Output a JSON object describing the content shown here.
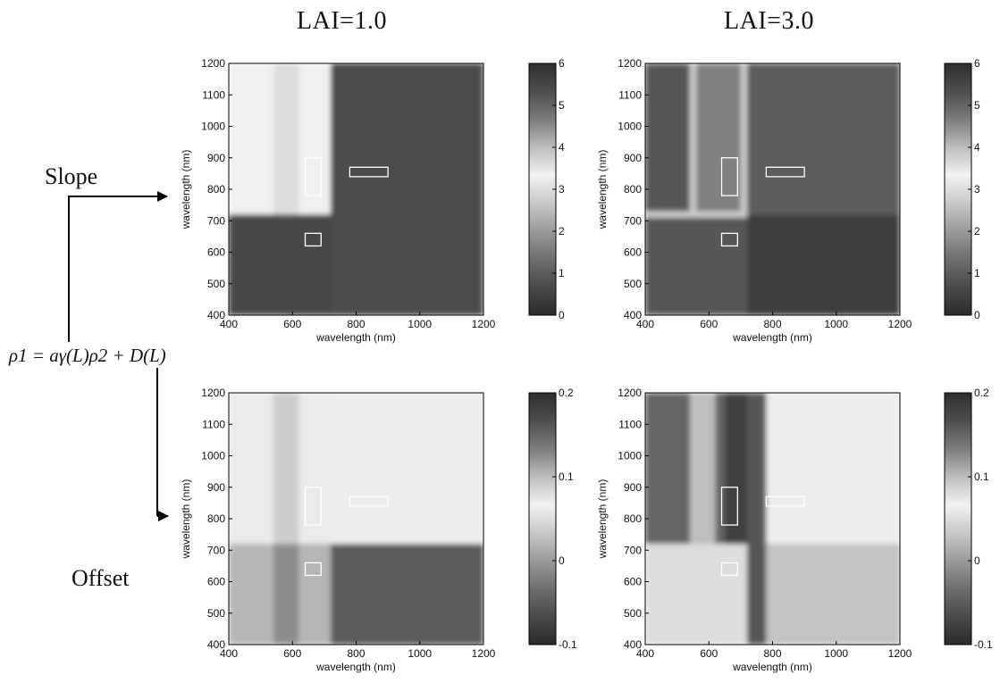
{
  "figure": {
    "column_titles": [
      "LAI=1.0",
      "LAI=3.0"
    ],
    "row_labels": [
      "Slope",
      "Offset"
    ],
    "equation": "ρ1 = aγ(L)ρ2 + D(L)"
  },
  "colors": {
    "colormap": [
      "#2b2b2b",
      "#4a4a4a",
      "#6e6e6e",
      "#9a9a9a",
      "#c8c8c8",
      "#f2f2f2",
      "#bdbdbd",
      "#7c7c7c",
      "#4e4e4e",
      "#2e2e2e"
    ],
    "box_outline": "#ffffff",
    "arrow": "#000000"
  },
  "chart_data": [
    {
      "type": "heatmap",
      "panel": "Slope, LAI=1.0",
      "xlabel": "wavelength (nm)",
      "ylabel": "wavelength (nm)",
      "xlim": [
        400,
        1200
      ],
      "ylim": [
        400,
        1200
      ],
      "xticks": [
        400,
        600,
        800,
        1000,
        1200
      ],
      "yticks": [
        400,
        500,
        600,
        700,
        800,
        900,
        1000,
        1100,
        1200
      ],
      "colorbar": {
        "min": 0,
        "max": 6,
        "ticks": [
          0,
          1,
          2,
          3,
          4,
          5,
          6
        ]
      },
      "regions": [
        {
          "x": [
            400,
            720
          ],
          "y": [
            720,
            1200
          ],
          "value": 3.3
        },
        {
          "x": [
            540,
            620
          ],
          "y": [
            720,
            1200
          ],
          "value": 3.6
        },
        {
          "x": [
            720,
            1200
          ],
          "y": [
            400,
            1200
          ],
          "value": 0.7
        },
        {
          "x": [
            400,
            720
          ],
          "y": [
            400,
            720
          ],
          "value": 0.6
        }
      ],
      "boxes": [
        {
          "x": [
            640,
            690
          ],
          "y": [
            780,
            900
          ]
        },
        {
          "x": [
            780,
            900
          ],
          "y": [
            840,
            870
          ]
        },
        {
          "x": [
            640,
            690
          ],
          "y": [
            620,
            660
          ]
        }
      ]
    },
    {
      "type": "heatmap",
      "panel": "Slope, LAI=3.0",
      "xlabel": "wavelength (nm)",
      "ylabel": "wavelength (nm)",
      "xlim": [
        400,
        1200
      ],
      "ylim": [
        400,
        1200
      ],
      "xticks": [
        400,
        600,
        800,
        1000,
        1200
      ],
      "yticks": [
        400,
        500,
        600,
        700,
        800,
        900,
        1000,
        1100,
        1200
      ],
      "colorbar": {
        "min": 0,
        "max": 6,
        "ticks": [
          0,
          1,
          2,
          3,
          4,
          5,
          6
        ]
      },
      "regions": [
        {
          "x": [
            400,
            720
          ],
          "y": [
            400,
            1200
          ],
          "value": 0.9
        },
        {
          "x": [
            720,
            1200
          ],
          "y": [
            720,
            1200
          ],
          "value": 1.0
        },
        {
          "x": [
            720,
            1200
          ],
          "y": [
            400,
            720
          ],
          "value": 0.4
        },
        {
          "x": [
            540,
            700
          ],
          "y": [
            720,
            1200
          ],
          "value": 1.6
        },
        {
          "x": [
            540,
            560
          ],
          "y": [
            720,
            1200
          ],
          "value": 3.8
        },
        {
          "x": [
            700,
            720
          ],
          "y": [
            720,
            1200
          ],
          "value": 3.8
        },
        {
          "x": [
            400,
            720
          ],
          "y": [
            710,
            730
          ],
          "value": 3.8
        }
      ],
      "boxes": [
        {
          "x": [
            640,
            690
          ],
          "y": [
            780,
            900
          ]
        },
        {
          "x": [
            780,
            900
          ],
          "y": [
            840,
            870
          ]
        },
        {
          "x": [
            640,
            690
          ],
          "y": [
            620,
            660
          ]
        }
      ]
    },
    {
      "type": "heatmap",
      "panel": "Offset, LAI=1.0",
      "xlabel": "wavelength (nm)",
      "ylabel": "wavelength (nm)",
      "xlim": [
        400,
        1200
      ],
      "ylim": [
        400,
        1200
      ],
      "xticks": [
        400,
        600,
        800,
        1000,
        1200
      ],
      "yticks": [
        400,
        500,
        600,
        700,
        800,
        900,
        1000,
        1100,
        1200
      ],
      "colorbar": {
        "min": -0.1,
        "max": 0.2,
        "ticks": [
          -0.1,
          0,
          0.1,
          0.2
        ]
      },
      "regions": [
        {
          "x": [
            400,
            720
          ],
          "y": [
            720,
            1200
          ],
          "value": 0.06
        },
        {
          "x": [
            720,
            1200
          ],
          "y": [
            720,
            1200
          ],
          "value": 0.07
        },
        {
          "x": [
            720,
            1200
          ],
          "y": [
            400,
            720
          ],
          "value": -0.05
        },
        {
          "x": [
            400,
            720
          ],
          "y": [
            400,
            720
          ],
          "value": 0.02
        },
        {
          "x": [
            540,
            620
          ],
          "y": [
            720,
            1200
          ],
          "value": 0.09
        },
        {
          "x": [
            540,
            620
          ],
          "y": [
            400,
            720
          ],
          "value": -0.01
        }
      ],
      "boxes": [
        {
          "x": [
            640,
            690
          ],
          "y": [
            780,
            900
          ]
        },
        {
          "x": [
            780,
            900
          ],
          "y": [
            840,
            870
          ]
        },
        {
          "x": [
            640,
            690
          ],
          "y": [
            620,
            660
          ]
        }
      ]
    },
    {
      "type": "heatmap",
      "panel": "Offset, LAI=3.0",
      "xlabel": "wavelength (nm)",
      "ylabel": "wavelength (nm)",
      "xlim": [
        400,
        1200
      ],
      "ylim": [
        400,
        1200
      ],
      "xticks": [
        400,
        600,
        800,
        1000,
        1200
      ],
      "yticks": [
        400,
        500,
        600,
        700,
        800,
        900,
        1000,
        1100,
        1200
      ],
      "colorbar": {
        "min": -0.1,
        "max": 0.2,
        "ticks": [
          -0.1,
          0,
          0.1,
          0.2
        ]
      },
      "regions": [
        {
          "x": [
            400,
            720
          ],
          "y": [
            720,
            1200
          ],
          "value": 0.15
        },
        {
          "x": [
            720,
            1200
          ],
          "y": [
            720,
            1200
          ],
          "value": 0.07
        },
        {
          "x": [
            720,
            1200
          ],
          "y": [
            400,
            720
          ],
          "value": 0.03
        },
        {
          "x": [
            400,
            720
          ],
          "y": [
            400,
            720
          ],
          "value": 0.05
        },
        {
          "x": [
            540,
            620
          ],
          "y": [
            720,
            1200
          ],
          "value": 0.1
        },
        {
          "x": [
            650,
            720
          ],
          "y": [
            720,
            1200
          ],
          "value": 0.18
        },
        {
          "x": [
            720,
            780
          ],
          "y": [
            400,
            1200
          ],
          "value": 0.16
        }
      ],
      "boxes": [
        {
          "x": [
            640,
            690
          ],
          "y": [
            780,
            900
          ]
        },
        {
          "x": [
            780,
            900
          ],
          "y": [
            840,
            870
          ]
        },
        {
          "x": [
            640,
            690
          ],
          "y": [
            620,
            660
          ]
        }
      ]
    }
  ]
}
